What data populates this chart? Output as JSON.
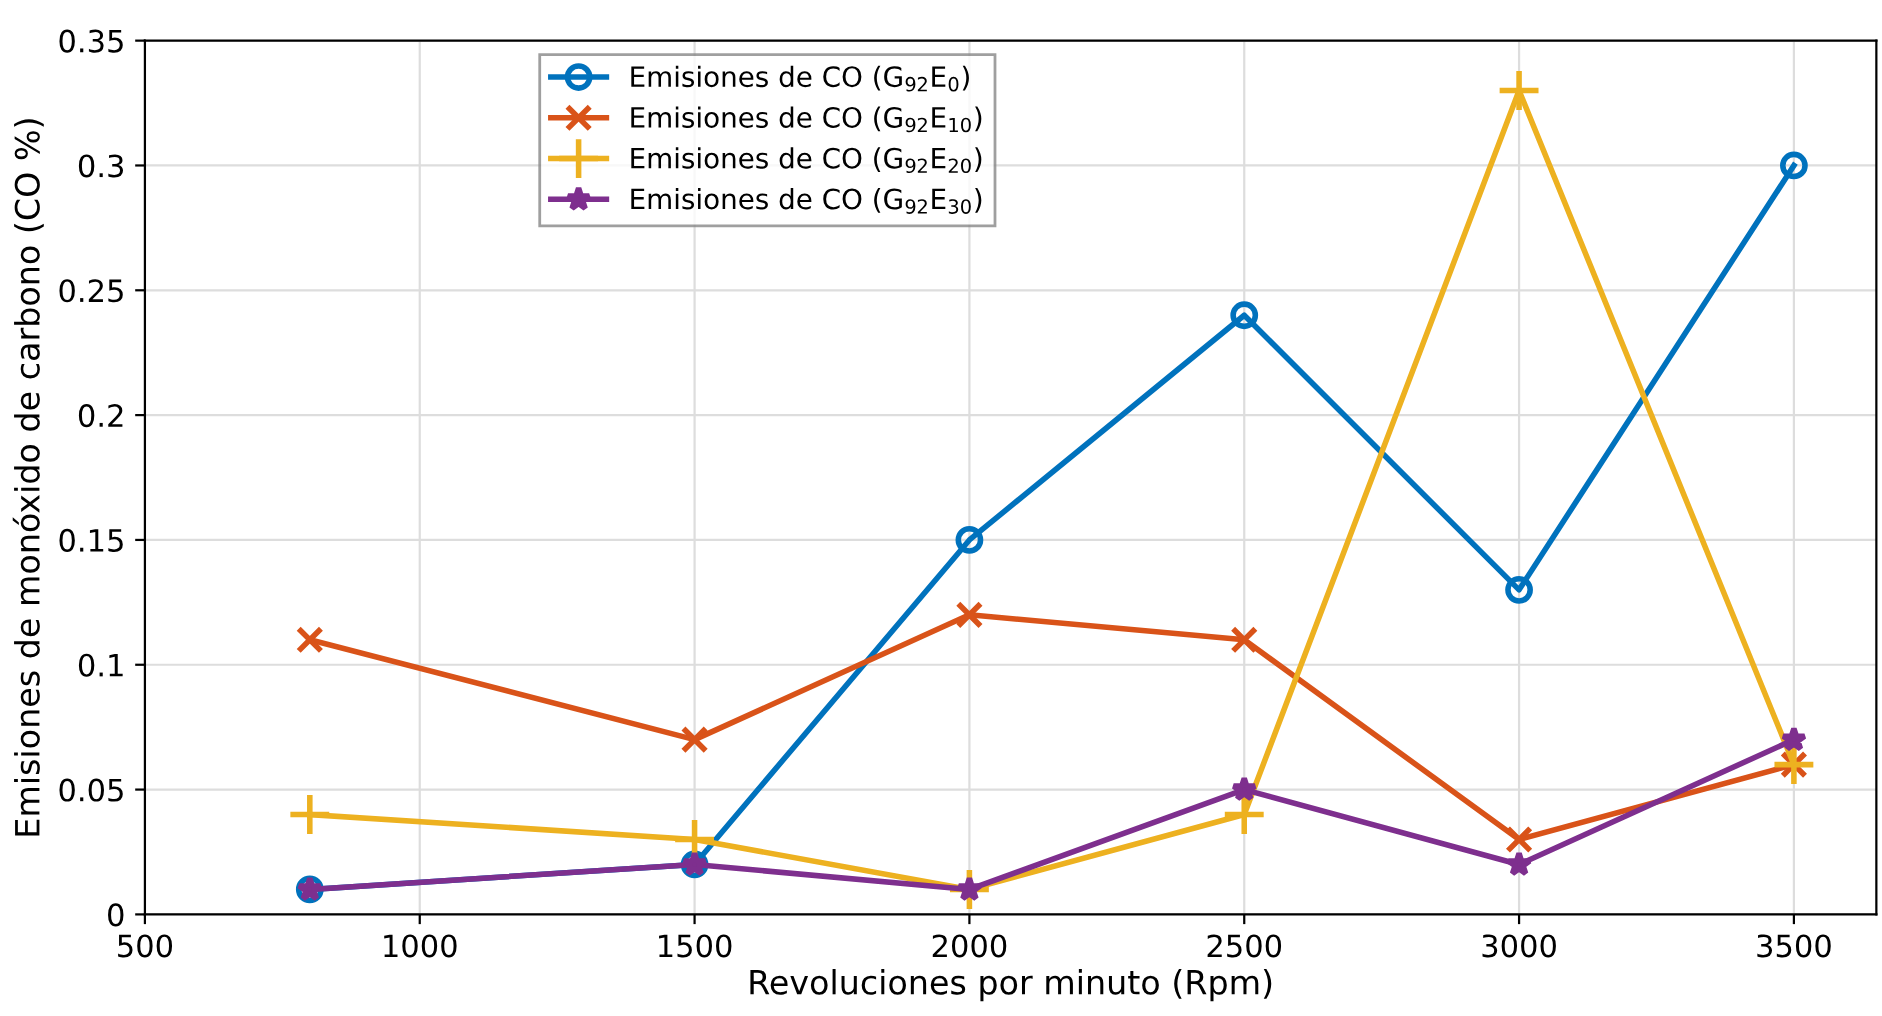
{
  "chart_data": {
    "type": "line",
    "xlabel": "Revoluciones por minuto (Rpm)",
    "ylabel": "Emisiones de monóxido de carbono (CO %)",
    "x": [
      800,
      1500,
      2000,
      2500,
      3000,
      3500
    ],
    "series": [
      {
        "name": "Emisiones de CO (G$_{92}$E$_{0}$)",
        "color": "#0072bd",
        "marker": "circle",
        "values": [
          0.01,
          0.02,
          0.15,
          0.24,
          0.13,
          0.3
        ]
      },
      {
        "name": "Emisiones de CO (G$_{92}$E$_{10}$)",
        "color": "#d95319",
        "marker": "cross",
        "values": [
          0.11,
          0.07,
          0.12,
          0.11,
          0.03,
          0.06
        ]
      },
      {
        "name": "Emisiones de CO (G$_{92}$E$_{20}$)",
        "color": "#edb120",
        "marker": "plus",
        "values": [
          0.04,
          0.03,
          0.01,
          0.04,
          0.33,
          0.06
        ]
      },
      {
        "name": "Emisiones de CO (G$_{92}$E$_{30}$)",
        "color": "#7e2f8e",
        "marker": "star",
        "values": [
          0.01,
          0.02,
          0.01,
          0.05,
          0.02,
          0.07
        ]
      }
    ],
    "xlim": [
      500,
      3650
    ],
    "xticks": [
      500,
      1000,
      1500,
      2000,
      2500,
      3000,
      3500
    ],
    "ylim": [
      0,
      0.35
    ],
    "yticks": [
      0,
      0.05,
      0.1,
      0.15,
      0.2,
      0.25,
      0.3,
      0.35
    ],
    "grid": true,
    "legend": "top left",
    "line_style": "solid"
  }
}
